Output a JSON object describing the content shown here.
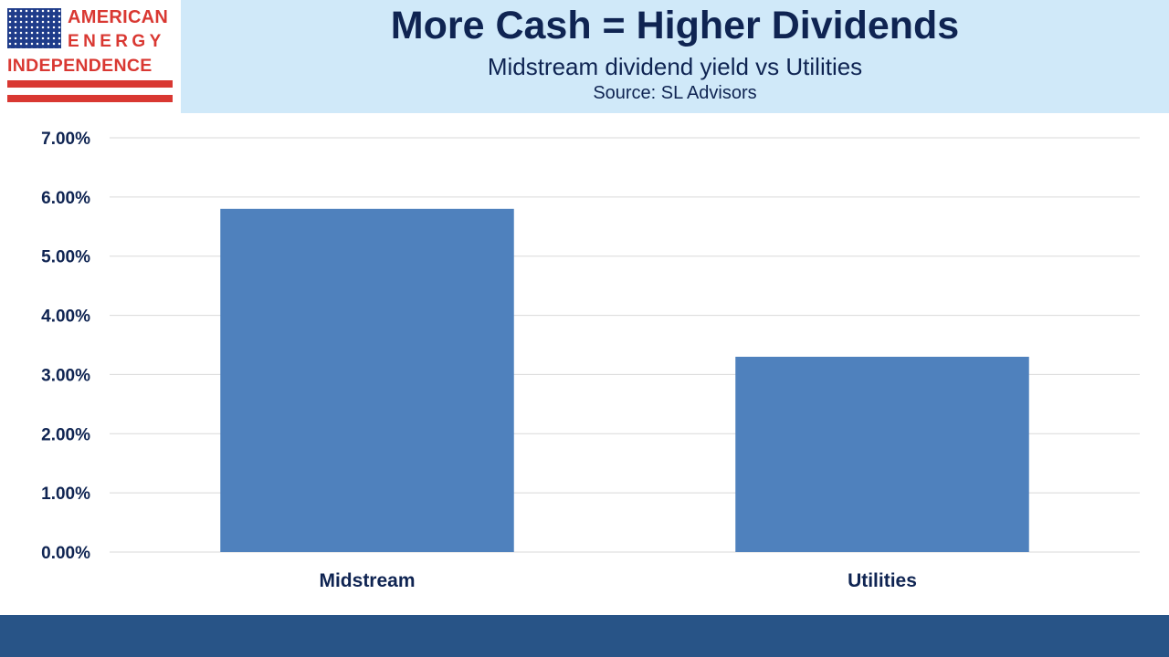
{
  "logo": {
    "line1": "AMERICAN",
    "line2": "ENERGY",
    "line3": "INDEPENDENCE",
    "icon": "us-flag-icon"
  },
  "header": {
    "title": "More Cash = Higher Dividends",
    "subtitle": "Midstream dividend yield vs Utilities",
    "source": "Source: SL Advisors"
  },
  "colors": {
    "bar": "#4f81bd",
    "title_text": "#0f2452",
    "banner_bg": "#d0e9f9",
    "logo_red": "#d93832",
    "flag_blue": "#1f3c8a",
    "footer_bar": "#285487",
    "gridline": "#d9d9d9"
  },
  "chart_data": {
    "type": "bar",
    "title": "",
    "xlabel": "",
    "ylabel": "",
    "categories": [
      "Midstream",
      "Utilities"
    ],
    "values": [
      5.8,
      3.3
    ],
    "unit": "%",
    "ylim": [
      0,
      7
    ],
    "yticks": [
      "0.00%",
      "1.00%",
      "2.00%",
      "3.00%",
      "4.00%",
      "5.00%",
      "6.00%",
      "7.00%"
    ],
    "ytick_values": [
      0,
      1,
      2,
      3,
      4,
      5,
      6,
      7
    ],
    "grid": true,
    "legend": "none"
  }
}
